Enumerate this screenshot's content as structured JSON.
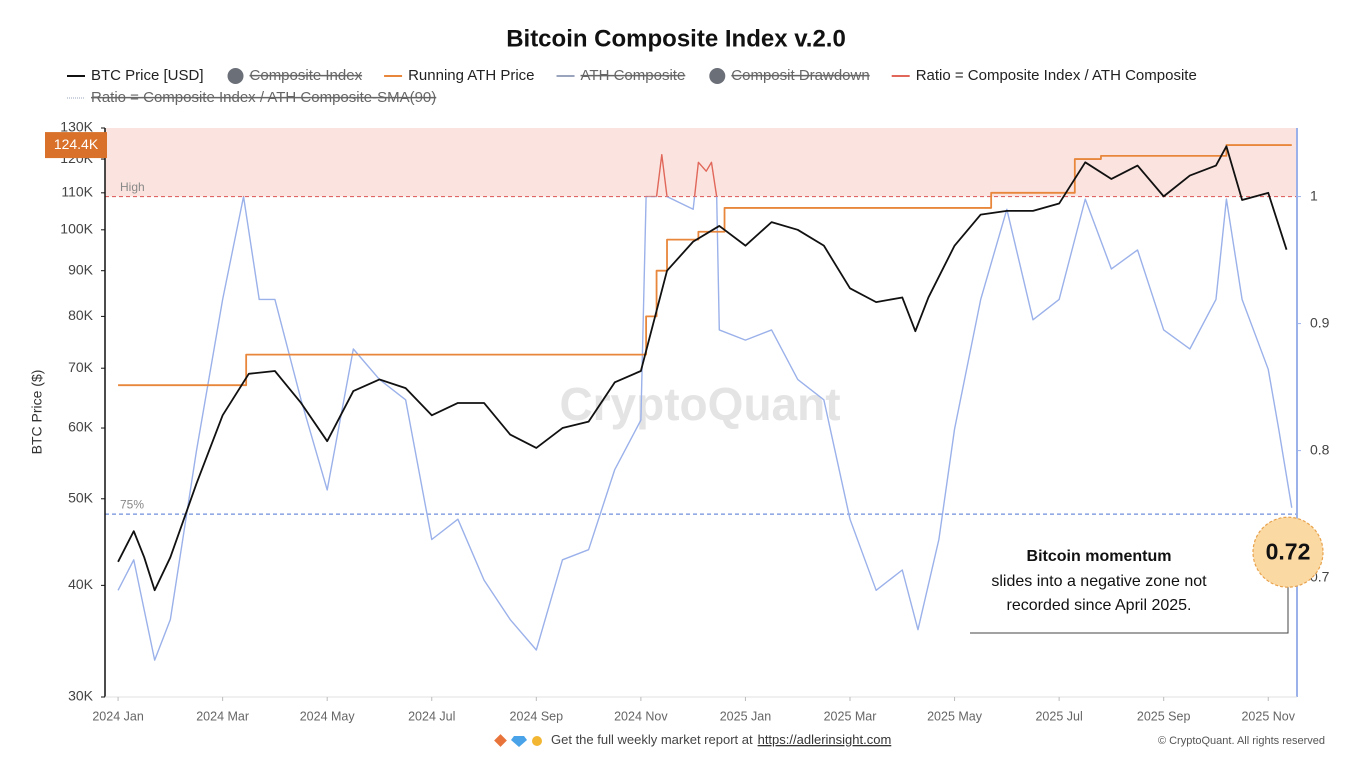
{
  "chart_data": {
    "type": "line",
    "title": "Bitcoin Composite Index v.2.0",
    "y_label": "BTC Price ($)",
    "watermark": "CryptoQuant",
    "ylog": true,
    "xlim": [
      -0.25,
      22.55
    ],
    "xticks": [
      {
        "value": 0,
        "label": "2024 Jan"
      },
      {
        "value": 2,
        "label": "2024 Mar"
      },
      {
        "value": 4,
        "label": "2024 May"
      },
      {
        "value": 6,
        "label": "2024 Jul"
      },
      {
        "value": 8,
        "label": "2024 Sep"
      },
      {
        "value": 10,
        "label": "2024 Nov"
      },
      {
        "value": 12,
        "label": "2025 Jan"
      },
      {
        "value": 14,
        "label": "2025 Mar"
      },
      {
        "value": 16,
        "label": "2025 May"
      },
      {
        "value": 18,
        "label": "2025 Jul"
      },
      {
        "value": 20,
        "label": "2025 Sep"
      },
      {
        "value": 22,
        "label": "2025 Nov"
      }
    ],
    "ylim": [
      30000,
      130000
    ],
    "yticks": [
      {
        "value": 30000,
        "label": "30K"
      },
      {
        "value": 40000,
        "label": "40K"
      },
      {
        "value": 50000,
        "label": "50K"
      },
      {
        "value": 60000,
        "label": "60K"
      },
      {
        "value": 70000,
        "label": "70K"
      },
      {
        "value": 80000,
        "label": "80K"
      },
      {
        "value": 90000,
        "label": "90K"
      },
      {
        "value": 100000,
        "label": "100K"
      },
      {
        "value": 110000,
        "label": "110K"
      },
      {
        "value": 120000,
        "label": "120K"
      },
      {
        "value": 130000,
        "label": "130K"
      }
    ],
    "y2lim": [
      0.606,
      1.054
    ],
    "y2ticks": [
      0.7,
      0.8,
      0.9,
      1
    ],
    "legend": [
      {
        "name": "BTC Price [USD]",
        "color": "#111111",
        "marker": "line",
        "hidden": false
      },
      {
        "name": "Composite Index",
        "color": "#6b6f78",
        "marker": "dot",
        "hidden": true
      },
      {
        "name": "Running ATH Price",
        "color": "#e8873c",
        "marker": "line",
        "hidden": false
      },
      {
        "name": "ATH Composite",
        "color": "#9aa4bd",
        "marker": "line",
        "hidden": true
      },
      {
        "name": "Composit Drawdown",
        "color": "#6b6f78",
        "marker": "dot",
        "hidden": true
      },
      {
        "name": "Ratio = Composite Index / ATH Composite",
        "color": "#e0675a",
        "marker": "line",
        "hidden": false
      },
      {
        "name": "Ratio = Composite Index / ATH Composite-SMA(90)",
        "color": "#9aa4bd",
        "marker": "dotted",
        "hidden": true
      }
    ],
    "series": [
      {
        "color": "#9bb1ea",
        "axis": "y2",
        "over_value": 1,
        "over_color": "#e0675a",
        "x": [
          0,
          0.3,
          0.7,
          1.0,
          1.5,
          2.0,
          2.4,
          2.7,
          3.0,
          3.5,
          4.0,
          4.5,
          5.0,
          5.5,
          6.0,
          6.5,
          7.0,
          7.5,
          8.0,
          8.5,
          9.0,
          9.5,
          10.0,
          10.1,
          10.3,
          10.4,
          10.5,
          11.0,
          11.1,
          11.25,
          11.35,
          11.45,
          11.5,
          12.0,
          12.5,
          13.0,
          13.5,
          14.0,
          14.5,
          15.0,
          15.3,
          15.7,
          16.0,
          16.5,
          17.0,
          17.5,
          18.0,
          18.5,
          19.0,
          19.5,
          20.0,
          20.5,
          21.0,
          21.2,
          21.5,
          22.0,
          22.2,
          22.45
        ],
        "values": [
          0.69,
          0.714,
          0.635,
          0.667,
          0.8,
          0.919,
          1.0,
          0.919,
          0.919,
          0.84,
          0.769,
          0.88,
          0.856,
          0.84,
          0.73,
          0.746,
          0.698,
          0.667,
          0.643,
          0.714,
          0.722,
          0.785,
          0.824,
          1.0,
          1.0,
          1.033,
          1.0,
          0.99,
          1.027,
          1.02,
          1.027,
          1.0,
          0.895,
          0.887,
          0.895,
          0.856,
          0.84,
          0.746,
          0.69,
          0.706,
          0.659,
          0.73,
          0.817,
          0.919,
          0.99,
          0.903,
          0.919,
          0.998,
          0.943,
          0.958,
          0.895,
          0.88,
          0.919,
          0.998,
          0.919,
          0.864,
          0.817,
          0.755
        ]
      },
      {
        "color": "#e8873c",
        "step": true,
        "x": [
          0,
          2.45,
          10.1,
          10.3,
          10.5,
          11.1,
          11.6,
          16.7,
          18.3,
          18.8,
          21.2,
          22.45
        ],
        "values": [
          67000,
          72500,
          80000,
          90000,
          97500,
          99500,
          105800,
          110000,
          120000,
          121000,
          124400,
          124400
        ]
      },
      {
        "color": "#111111",
        "x": [
          0,
          0.3,
          0.5,
          0.7,
          1.0,
          1.5,
          2.0,
          2.5,
          3.0,
          3.5,
          4.0,
          4.5,
          5.0,
          5.5,
          6.0,
          6.5,
          7.0,
          7.5,
          8.0,
          8.5,
          9.0,
          9.5,
          10.0,
          10.5,
          11.0,
          11.5,
          12.0,
          12.5,
          13.0,
          13.5,
          14.0,
          14.5,
          15.0,
          15.25,
          15.5,
          16.0,
          16.5,
          17.0,
          17.5,
          18.0,
          18.5,
          19.0,
          19.5,
          20.0,
          20.5,
          21.0,
          21.2,
          21.5,
          22.0,
          22.35
        ],
        "values": [
          42500,
          46000,
          43000,
          39500,
          43000,
          52000,
          62000,
          69000,
          69500,
          64000,
          58000,
          66000,
          68000,
          66500,
          62000,
          64000,
          64000,
          59000,
          57000,
          60000,
          61000,
          67500,
          69500,
          90000,
          97000,
          101000,
          96000,
          102000,
          100000,
          96000,
          86000,
          83000,
          84000,
          77000,
          84000,
          96000,
          104000,
          105000,
          105000,
          107000,
          119000,
          114000,
          118000,
          109000,
          115000,
          118000,
          124000,
          108000,
          110000,
          95000
        ]
      }
    ],
    "ath_marker": {
      "value": 124400,
      "label": "124.4K"
    },
    "reference_lines": [
      {
        "value": 1,
        "label": "High",
        "color": "#e06666",
        "shade_above": "#fbe4df"
      },
      {
        "value": 0.75,
        "label": "75%",
        "color": "#6f8fdc"
      }
    ],
    "callout": {
      "title": "Bitcoin momentum",
      "lines": [
        "slides into a negative zone not",
        "recorded since April 2025."
      ],
      "value": 0.72
    },
    "footer": {
      "text": "Get the full weekly market report at",
      "link": "https://adlerinsight.com",
      "copyright": "© CryptoQuant. All rights reserved"
    }
  }
}
